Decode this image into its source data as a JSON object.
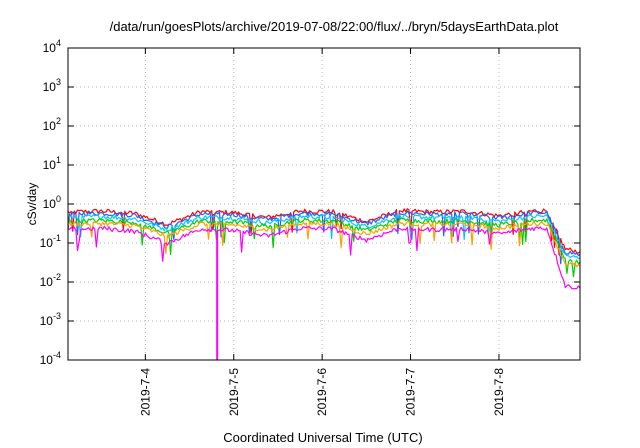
{
  "chart_data": {
    "type": "line",
    "title": "/data/run/goesPlots/archive/2019-07-08/22:00/flux/../bryn/5daysEarthData.plot",
    "xlabel": "Coordinated Universal Time (UTC)",
    "ylabel": "cSv/day",
    "yscale": "log",
    "ylim": [
      0.0001,
      10000
    ],
    "y_ticks": [
      {
        "value": 0.0001,
        "base": "10",
        "exp": "-4"
      },
      {
        "value": 0.001,
        "base": "10",
        "exp": "-3"
      },
      {
        "value": 0.01,
        "base": "10",
        "exp": "-2"
      },
      {
        "value": 0.1,
        "base": "10",
        "exp": "-1"
      },
      {
        "value": 1,
        "base": "10",
        "exp": "0"
      },
      {
        "value": 10,
        "base": "10",
        "exp": "1"
      },
      {
        "value": 100,
        "base": "10",
        "exp": "2"
      },
      {
        "value": 1000,
        "base": "10",
        "exp": "3"
      },
      {
        "value": 10000,
        "base": "10",
        "exp": "4"
      }
    ],
    "xlim": [
      "2019-07-03T03:00",
      "2019-07-08T22:00"
    ],
    "x_ticks": [
      "2019-7-4",
      "2019-7-5",
      "2019-7-6",
      "2019-7-7",
      "2019-7-8"
    ],
    "grid": true,
    "x": [
      "2019-07-03T03:00",
      "2019-07-03T12:00",
      "2019-07-03T21:00",
      "2019-07-04T06:00",
      "2019-07-04T15:00",
      "2019-07-05T00:00",
      "2019-07-05T09:00",
      "2019-07-05T18:00",
      "2019-07-06T03:00",
      "2019-07-06T12:00",
      "2019-07-06T21:00",
      "2019-07-07T06:00",
      "2019-07-07T15:00",
      "2019-07-08T00:00",
      "2019-07-08T09:00",
      "2019-07-08T13:00",
      "2019-07-08T18:00",
      "2019-07-08T22:00"
    ],
    "series": [
      {
        "color": "#ff0000",
        "values": [
          0.62,
          0.66,
          0.58,
          0.3,
          0.64,
          0.6,
          0.45,
          0.66,
          0.64,
          0.35,
          0.68,
          0.62,
          0.65,
          0.5,
          0.66,
          0.68,
          0.07,
          0.06
        ]
      },
      {
        "color": "#2060ff",
        "values": [
          0.55,
          0.58,
          0.52,
          0.26,
          0.56,
          0.54,
          0.4,
          0.58,
          0.56,
          0.31,
          0.6,
          0.55,
          0.57,
          0.44,
          0.58,
          0.6,
          0.06,
          0.05
        ]
      },
      {
        "color": "#00c8ff",
        "values": [
          0.45,
          0.48,
          0.42,
          0.22,
          0.46,
          0.44,
          0.33,
          0.48,
          0.46,
          0.26,
          0.49,
          0.45,
          0.47,
          0.36,
          0.48,
          0.49,
          0.048,
          0.04
        ]
      },
      {
        "color": "#00d000",
        "values": [
          0.36,
          0.38,
          0.34,
          0.18,
          0.37,
          0.35,
          0.27,
          0.38,
          0.37,
          0.21,
          0.39,
          0.36,
          0.37,
          0.29,
          0.38,
          0.39,
          0.038,
          0.032
        ]
      },
      {
        "color": "#ffa000",
        "values": [
          0.3,
          0.32,
          0.28,
          0.15,
          0.31,
          0.29,
          0.22,
          0.32,
          0.31,
          0.17,
          0.32,
          0.3,
          0.31,
          0.24,
          0.32,
          0.32,
          0.03,
          0.026
        ]
      },
      {
        "color": "#ff00ff",
        "values": [
          0.22,
          0.24,
          0.2,
          0.1,
          0.23,
          0.21,
          0.15,
          0.24,
          0.23,
          0.12,
          0.24,
          0.22,
          0.23,
          0.17,
          0.24,
          0.24,
          0.008,
          0.007
        ]
      }
    ],
    "spike": {
      "x": "2019-07-04T19:30",
      "y": 0.0001
    }
  }
}
